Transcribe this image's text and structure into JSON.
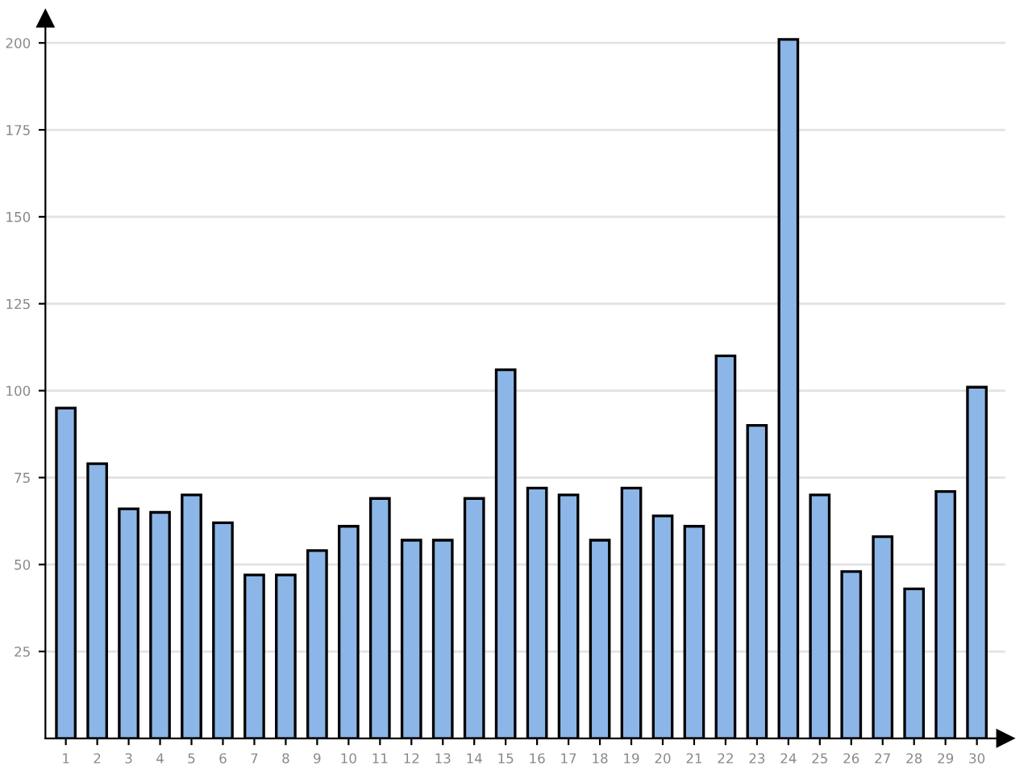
{
  "chart_data": {
    "type": "bar",
    "categories": [
      "1",
      "2",
      "3",
      "4",
      "5",
      "6",
      "7",
      "8",
      "9",
      "10",
      "11",
      "12",
      "13",
      "14",
      "15",
      "16",
      "17",
      "18",
      "19",
      "20",
      "21",
      "22",
      "23",
      "24",
      "25",
      "26",
      "27",
      "28",
      "29",
      "30"
    ],
    "values": [
      95,
      79,
      66,
      65,
      70,
      62,
      47,
      47,
      54,
      61,
      69,
      57,
      57,
      69,
      106,
      72,
      70,
      57,
      72,
      64,
      61,
      110,
      90,
      201,
      70,
      48,
      58,
      43,
      71,
      101
    ],
    "color": "#8cb6e8",
    "ylim": [
      0,
      207
    ],
    "yticks": [
      25,
      50,
      75,
      100,
      125,
      150,
      175,
      200
    ],
    "grid": "y"
  }
}
